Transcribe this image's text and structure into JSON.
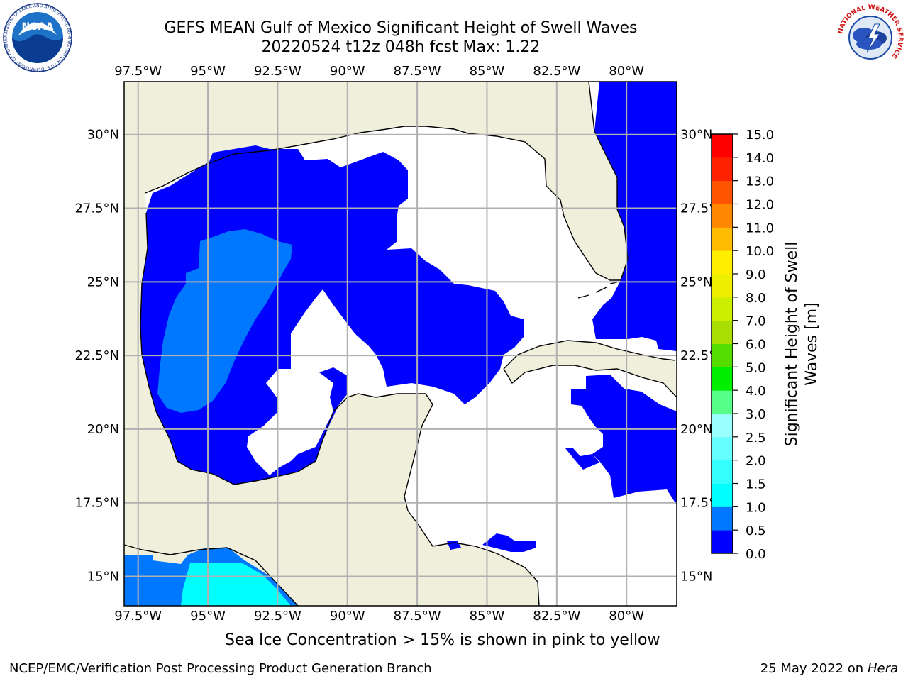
{
  "title_line1": "GEFS MEAN Gulf of Mexico Significant Height of Swell Waves",
  "title_line2": "20220524 t12z 048h fcst   Max: 1.22",
  "lon_labels": [
    "97.5°W",
    "95°W",
    "92.5°W",
    "90°W",
    "87.5°W",
    "85°W",
    "82.5°W",
    "80°W"
  ],
  "lat_labels": [
    "30°N",
    "27.5°N",
    "25°N",
    "22.5°N",
    "20°N",
    "17.5°N",
    "15°N"
  ],
  "colorbar": {
    "label": "Significant Height of Swell Waves [m]",
    "ticks": [
      "0.0",
      "0.5",
      "1.0",
      "1.5",
      "2.0",
      "2.5",
      "3.0",
      "4.0",
      "5.0",
      "6.0",
      "7.0",
      "8.0",
      "9.0",
      "10.0",
      "11.0",
      "12.0",
      "13.0",
      "14.0",
      "15.0"
    ],
    "colors": [
      "#0000ff",
      "#0077ff",
      "#00ffff",
      "#33ffff",
      "#66ffff",
      "#99ffff",
      "#55ff88",
      "#00ee00",
      "#55dd00",
      "#aadd00",
      "#ccee00",
      "#eeee00",
      "#ffee00",
      "#ffbb00",
      "#ff8800",
      "#ff5500",
      "#ff2200",
      "#ff0000"
    ]
  },
  "colors": {
    "land": "#efefdc",
    "ocean_none": "#ffffff",
    "grid": "#b0b0b0",
    "wave_0_0_5": "#0000ff",
    "wave_0_5_1_0": "#0077ff",
    "wave_1_0_1_5": "#00ffff"
  },
  "caption": "Sea Ice Concentration > 15% is shown in pink to yellow",
  "footer_left": "NCEP/EMC/Verification Post Processing Product Generation Branch",
  "footer_right_prefix": "25 May 2022 on",
  "footer_right_host": "Hera",
  "logos": {
    "left": "noaa-logo",
    "right": "nws-logo"
  },
  "logo_text": {
    "noaa": "NOAA",
    "noaa_ring": "NATIONAL OCEANIC AND ATMOSPHERIC ADMINISTRATION · U.S. DEPARTMENT OF COMMERCE",
    "nws_ring": "NATIONAL WEATHER SERVICE"
  }
}
